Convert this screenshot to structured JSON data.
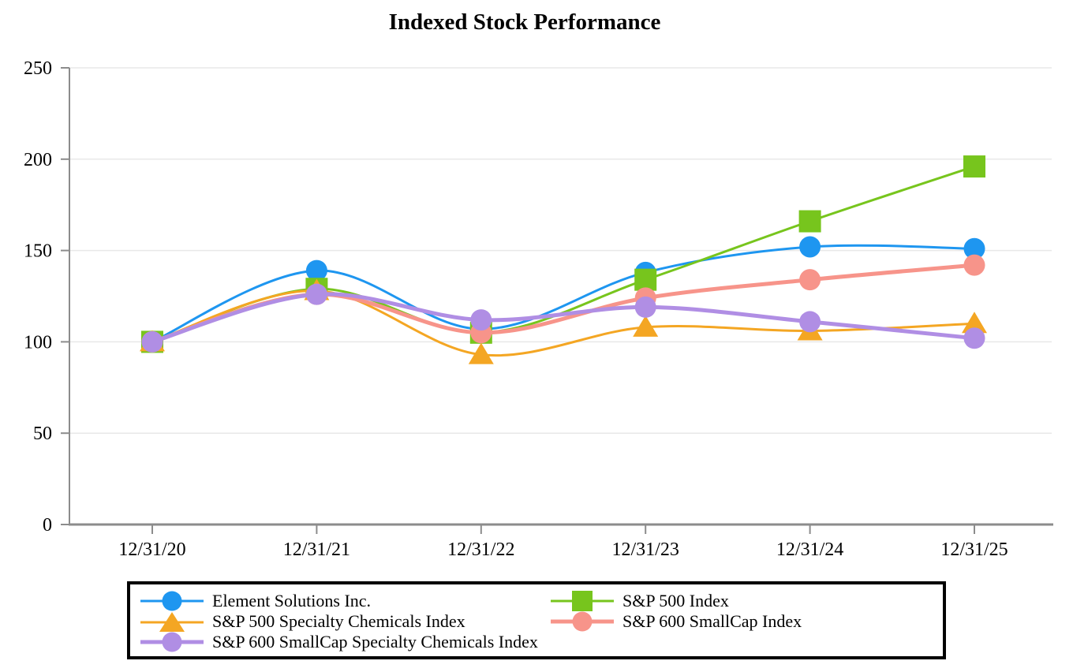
{
  "chart_data": {
    "type": "line",
    "title": "Indexed Stock Performance",
    "x_tick_labels": [
      "12/31/20",
      "12/31/21",
      "12/31/22",
      "12/31/23",
      "12/31/24",
      "12/31/25"
    ],
    "y_ticks": [
      0,
      50,
      100,
      150,
      200,
      250
    ],
    "ylim": [
      0,
      250
    ],
    "grid": "horizontal-light-gray",
    "legend_position": "bottom-boxed",
    "series": [
      {
        "key": "element-solutions",
        "name": "Element Solutions Inc.",
        "color": "#1E96F0",
        "marker": "circle",
        "line_width": 3,
        "values": [
          100,
          139,
          107,
          138,
          152,
          151
        ]
      },
      {
        "key": "sp500",
        "name": "S&P 500 Index",
        "color": "#77C51D",
        "marker": "square",
        "line_width": 3,
        "values": [
          100,
          129,
          105,
          134,
          166,
          196
        ]
      },
      {
        "key": "sp500-specialty-chemicals",
        "name": "S&P 500 Specialty Chemicals Index",
        "color": "#F4A623",
        "marker": "triangle",
        "line_width": 3,
        "values": [
          100,
          128,
          93,
          108,
          106,
          110
        ]
      },
      {
        "key": "sp600-smallcap",
        "name": "S&P 600 SmallCap Index",
        "color": "#F7948A",
        "marker": "circle",
        "line_width": 5,
        "values": [
          100,
          126,
          105,
          124,
          134,
          142
        ]
      },
      {
        "key": "sp600-smallcap-specialty-chemicals",
        "name": "S&P 600 SmallCap Specialty Chemicals Index",
        "color": "#B08EE4",
        "marker": "circle",
        "line_width": 5,
        "values": [
          100,
          126,
          112,
          119,
          111,
          102
        ]
      }
    ],
    "legend_columns": [
      [
        0,
        2,
        4
      ],
      [
        1,
        3
      ]
    ]
  },
  "style_colors": {
    "axis": "#8C8C8C",
    "grid": "#E8E8E8",
    "text": "#000000",
    "legend_border": "#000000",
    "background": "#FFFFFF"
  }
}
